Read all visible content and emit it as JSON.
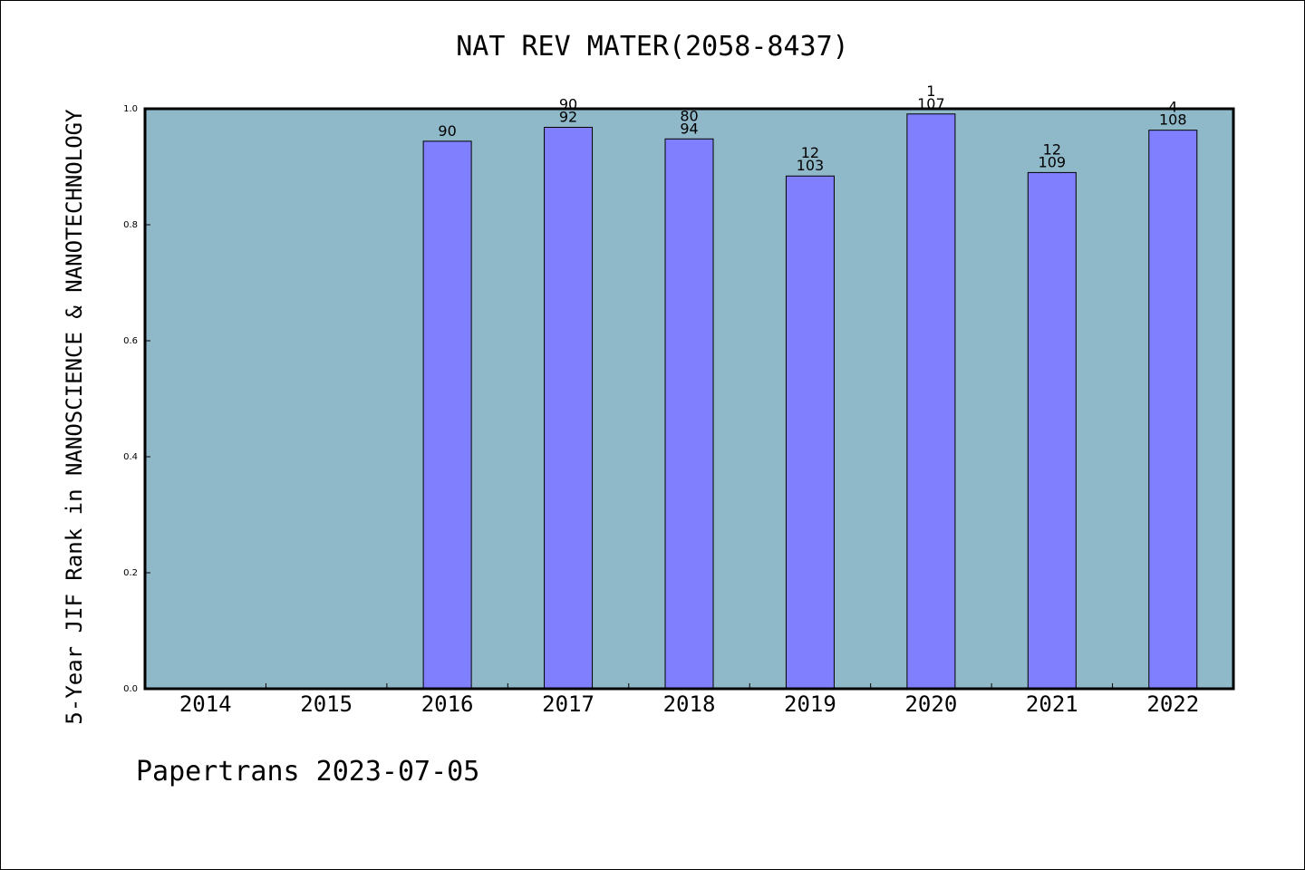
{
  "chart_data": {
    "type": "bar",
    "title": "NAT REV MATER(2058-8437)",
    "ylabel": "5-Year JIF Rank in NANOSCIENCE & NANOTECHNOLOGY",
    "xlabel": "",
    "footer": "Papertrans 2023-07-05",
    "categories": [
      "2014",
      "2015",
      "2016",
      "2017",
      "2018",
      "2019",
      "2020",
      "2021",
      "2022"
    ],
    "values": [
      null,
      null,
      0.944,
      0.968,
      0.948,
      0.884,
      0.991,
      0.89,
      0.963
    ],
    "labels_top": [
      "",
      "",
      "",
      "90",
      "80",
      "12",
      "1",
      "12",
      "4"
    ],
    "labels_bottom": [
      "",
      "",
      "90",
      "92",
      "94",
      "103",
      "107",
      "109",
      "108"
    ],
    "ylim": [
      0,
      1.0
    ],
    "yticks": [
      "0.0",
      "0.2",
      "0.4",
      "0.6",
      "0.8",
      "1.0"
    ],
    "grid": false,
    "colors": {
      "plot_bg": "#8fb8c8",
      "bar": "#8080ff",
      "axis": "#000000"
    }
  }
}
